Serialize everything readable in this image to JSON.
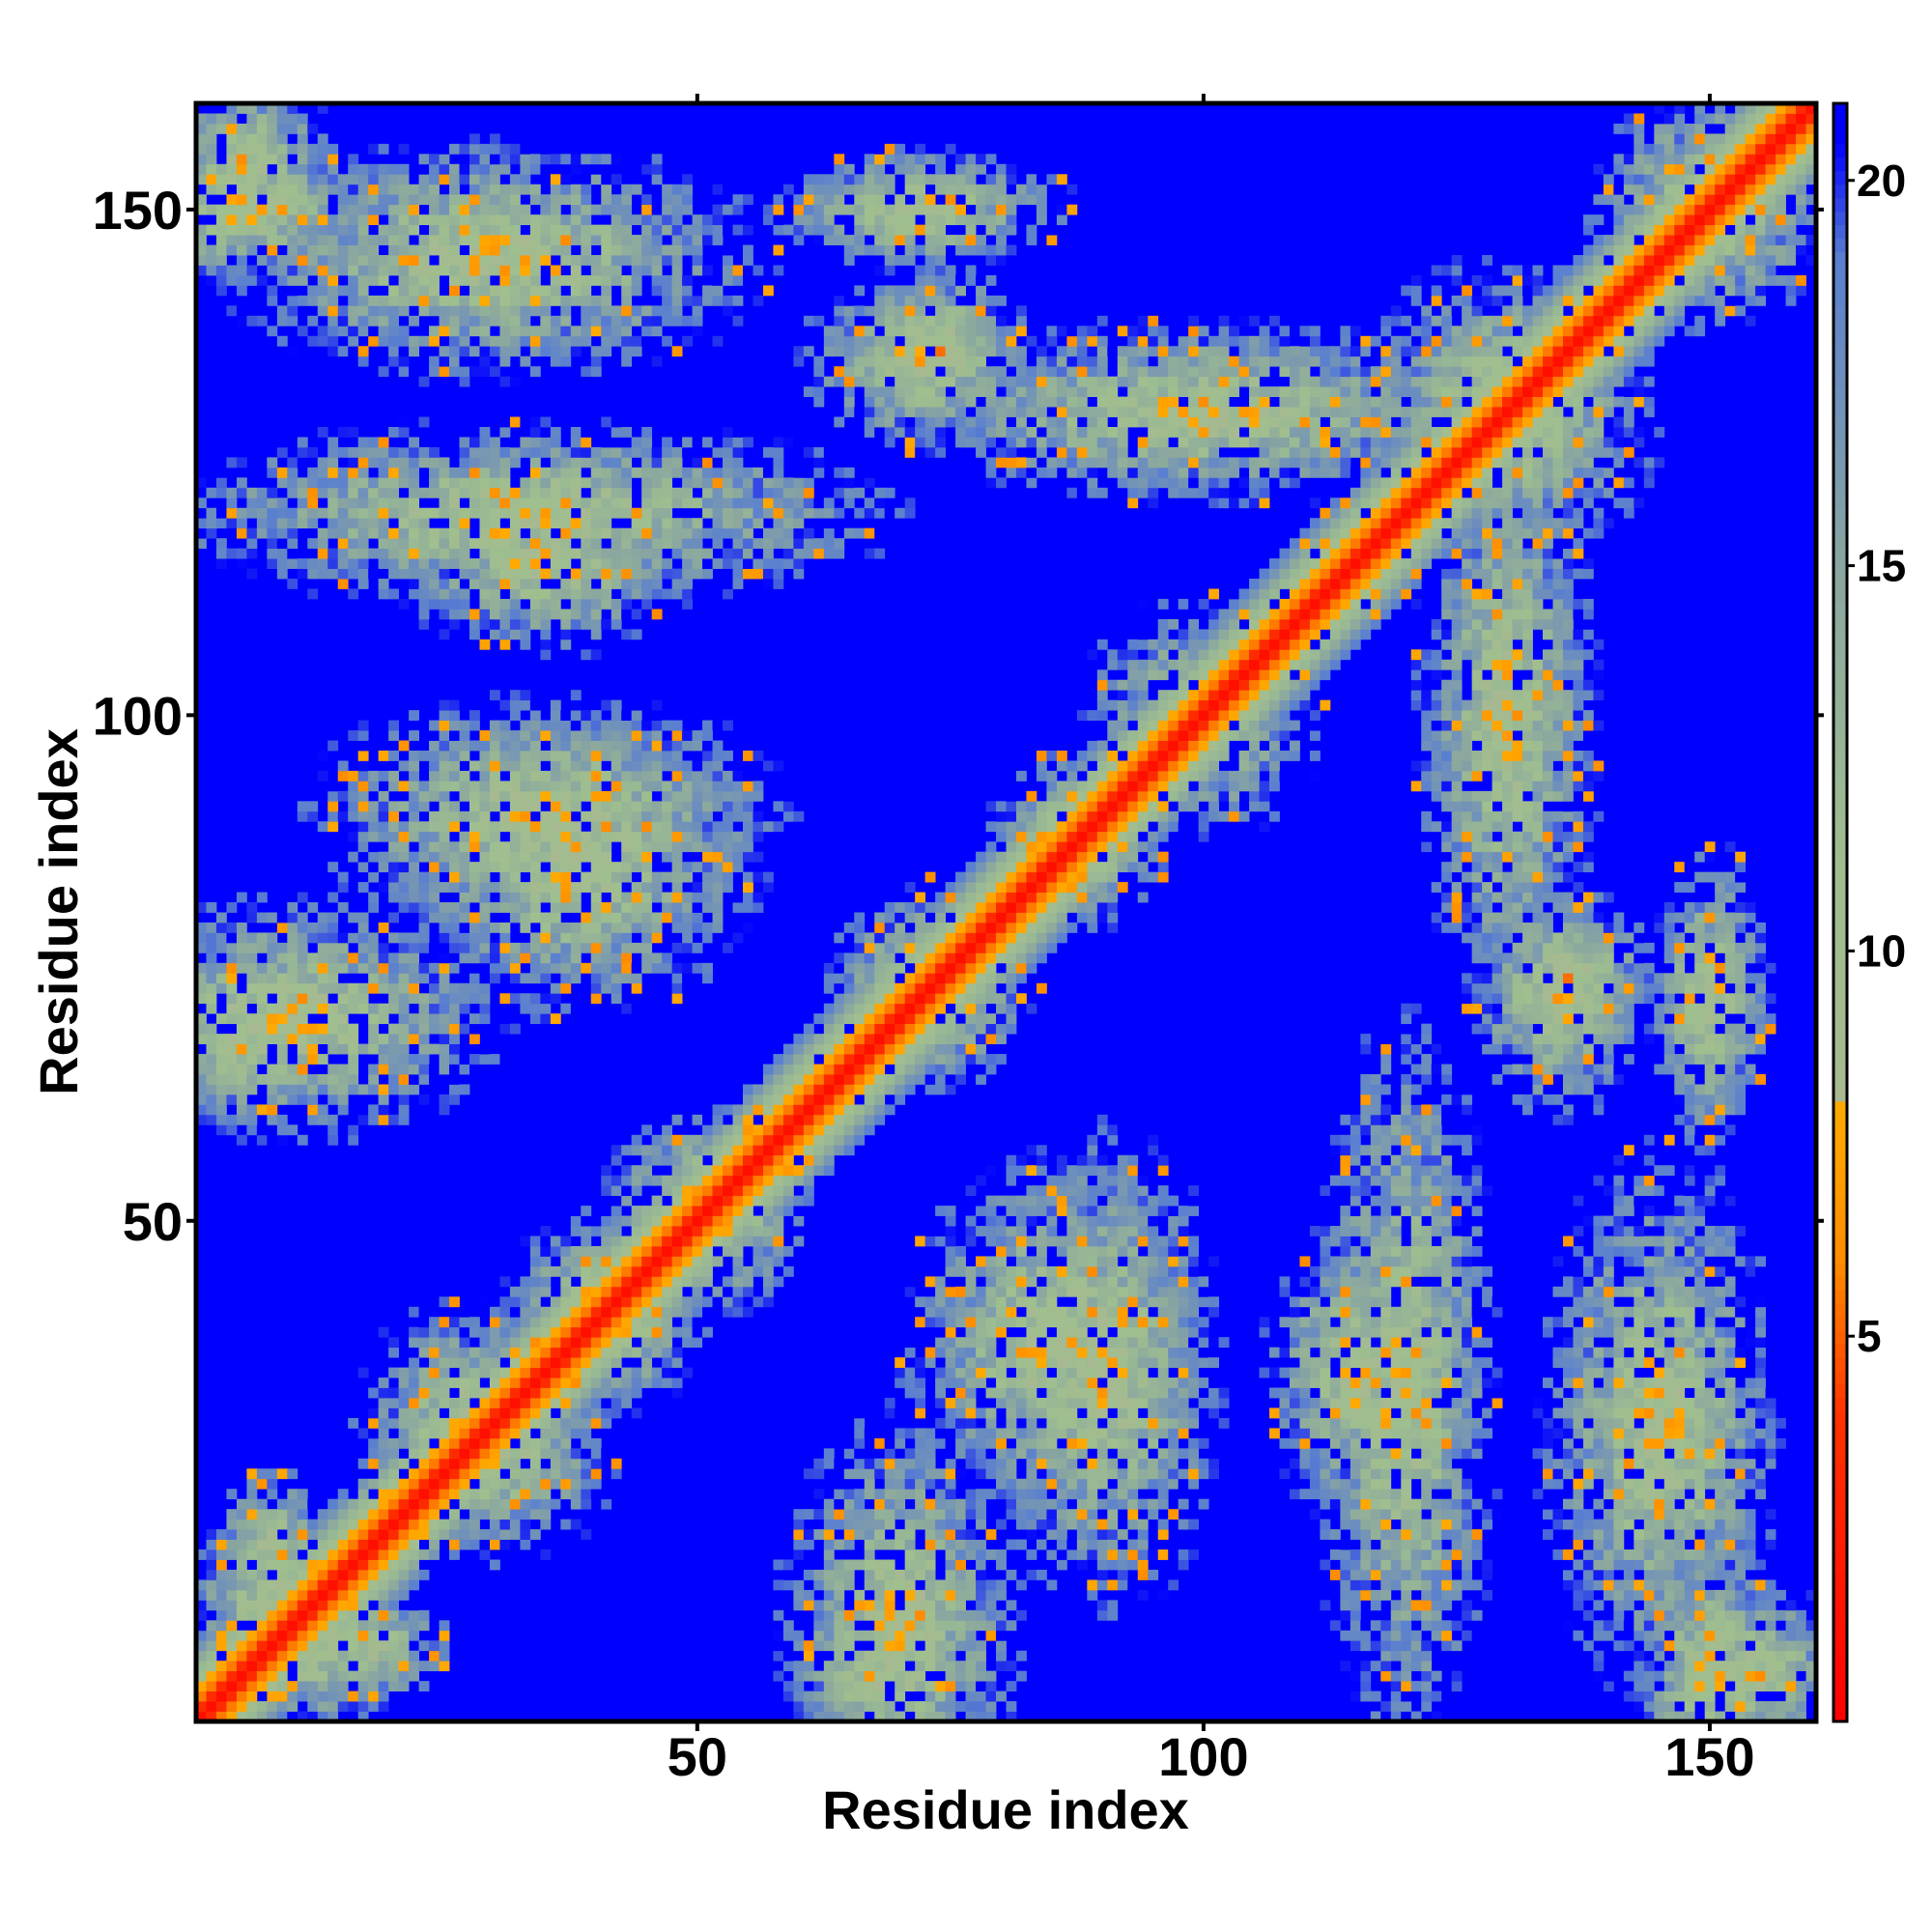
{
  "chart_data": {
    "type": "heatmap",
    "title": "",
    "xlabel": "Residue index",
    "ylabel": "Residue index",
    "xlim": [
      1,
      160
    ],
    "ylim": [
      1,
      160
    ],
    "x_ticks": [
      50,
      100,
      150
    ],
    "y_ticks": [
      50,
      100,
      150
    ],
    "colorbar": {
      "range": [
        0,
        21
      ],
      "ticks": [
        5,
        10,
        15,
        20
      ],
      "stops": [
        {
          "value": 0,
          "color": "#ff0000"
        },
        {
          "value": 4,
          "color": "#ff3300"
        },
        {
          "value": 6,
          "color": "#ff8c00"
        },
        {
          "value": 8,
          "color": "#ffaa00"
        },
        {
          "value": 8.01,
          "color": "#a8b890"
        },
        {
          "value": 11,
          "color": "#9fbf8f"
        },
        {
          "value": 15,
          "color": "#8aa6a0"
        },
        {
          "value": 19,
          "color": "#5a7fd0"
        },
        {
          "value": 20.5,
          "color": "#0000ff"
        }
      ]
    },
    "background_color": "#0000ff",
    "description_of_values": "pairwise residue distance map; symmetric; diagonal ~0, far pairs saturate at max",
    "contact_features": [
      {
        "type": "diagonal",
        "value": 0
      },
      {
        "type": "cluster",
        "i": 8,
        "j": 12,
        "rx": 6,
        "ry": 6
      },
      {
        "type": "cluster",
        "i": 18,
        "j": 8,
        "rx": 5,
        "ry": 4
      },
      {
        "type": "cluster",
        "i": 30,
        "j": 28,
        "rx": 8,
        "ry": 8
      },
      {
        "type": "cluster",
        "i": 40,
        "j": 42,
        "rx": 6,
        "ry": 6
      },
      {
        "type": "cluster",
        "i": 50,
        "j": 52,
        "rx": 6,
        "ry": 6
      },
      {
        "type": "cluster",
        "i": 68,
        "j": 5,
        "rx": 6,
        "ry": 5
      },
      {
        "type": "cluster",
        "i": 73,
        "j": 73,
        "rx": 7,
        "ry": 7
      },
      {
        "type": "cluster",
        "i": 88,
        "j": 88,
        "rx": 6,
        "ry": 6
      },
      {
        "type": "cluster",
        "i": 85,
        "j": 38,
        "rx": 10,
        "ry": 12
      },
      {
        "type": "cluster",
        "i": 100,
        "j": 100,
        "rx": 8,
        "ry": 8
      },
      {
        "type": "cluster",
        "i": 115,
        "j": 35,
        "rx": 6,
        "ry": 10
      },
      {
        "type": "cluster",
        "i": 130,
        "j": 130,
        "rx": 10,
        "ry": 10
      },
      {
        "type": "cluster",
        "i": 150,
        "j": 150,
        "rx": 8,
        "ry": 8
      },
      {
        "type": "cluster",
        "i": 145,
        "j": 30,
        "rx": 8,
        "ry": 18
      },
      {
        "type": "cluster",
        "i": 150,
        "j": 5,
        "rx": 5,
        "ry": 10
      },
      {
        "type": "cluster",
        "i": 150,
        "j": 72,
        "rx": 4,
        "ry": 10
      },
      {
        "type": "cluster",
        "i": 136,
        "j": 74,
        "rx": 6,
        "ry": 6
      },
      {
        "type": "cluster",
        "i": 35,
        "j": 90,
        "rx": 16,
        "ry": 8
      },
      {
        "type": "cluster",
        "i": 33,
        "j": 120,
        "rx": 25,
        "ry": 6
      },
      {
        "type": "cluster",
        "i": 10,
        "j": 70,
        "rx": 14,
        "ry": 8
      },
      {
        "type": "cluster",
        "i": 72,
        "j": 135,
        "rx": 8,
        "ry": 6
      },
      {
        "type": "cluster",
        "i": 72,
        "j": 150,
        "rx": 8,
        "ry": 4
      },
      {
        "type": "cluster",
        "i": 100,
        "j": 130,
        "rx": 20,
        "ry": 6
      },
      {
        "type": "cluster",
        "i": 5,
        "j": 155,
        "rx": 6,
        "ry": 6
      }
    ]
  }
}
